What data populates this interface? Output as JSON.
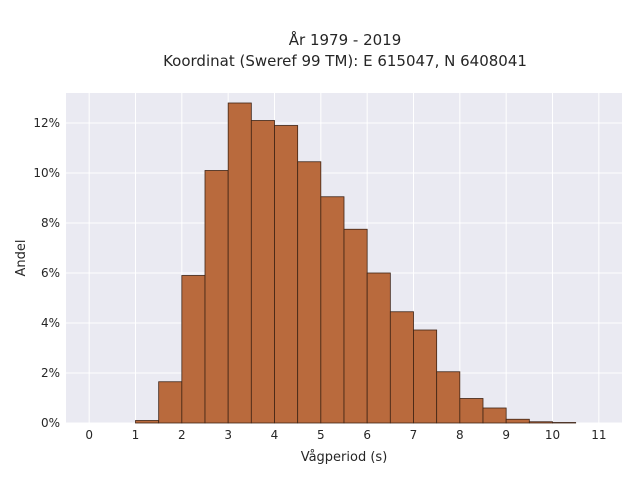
{
  "chart_data": {
    "type": "bar",
    "title_line1": "År 1979 - 2019",
    "title_line2": "Koordinat (Sweref 99 TM): E 615047, N 6408041",
    "xlabel": "Vågperiod (s)",
    "ylabel": "Andel",
    "xlim": [
      -0.5,
      11.5
    ],
    "ylim": [
      0,
      13.2
    ],
    "x_ticks": [
      "0",
      "1",
      "2",
      "3",
      "4",
      "5",
      "6",
      "7",
      "8",
      "9",
      "10",
      "11"
    ],
    "y_ticks": [
      {
        "value": 0,
        "label": "0%"
      },
      {
        "value": 2,
        "label": "2%"
      },
      {
        "value": 4,
        "label": "4%"
      },
      {
        "value": 6,
        "label": "6%"
      },
      {
        "value": 8,
        "label": "8%"
      },
      {
        "value": 10,
        "label": "10%"
      },
      {
        "value": 12,
        "label": "12%"
      }
    ],
    "bin_width": 0.5,
    "bin_starts": [
      1.0,
      1.5,
      2.0,
      2.5,
      3.0,
      3.5,
      4.0,
      4.5,
      5.0,
      5.5,
      6.0,
      6.5,
      7.0,
      7.5,
      8.0,
      8.5,
      9.0,
      9.5,
      10.0
    ],
    "values": [
      0.1,
      1.65,
      5.9,
      10.1,
      12.8,
      12.1,
      11.9,
      10.45,
      9.05,
      7.75,
      6.0,
      4.45,
      3.72,
      2.05,
      0.98,
      0.6,
      0.15,
      0.05,
      0.02
    ],
    "grid": true,
    "colors": {
      "bar_fill": "#b96a3d",
      "bar_edge": "#3f2415",
      "plot_background": "#eaeaf2",
      "grid": "#ffffff"
    }
  }
}
